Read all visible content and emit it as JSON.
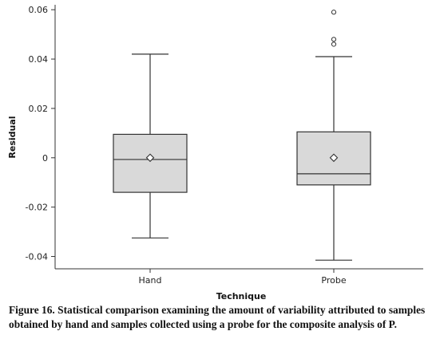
{
  "chart_data": {
    "type": "box",
    "xlabel": "Technique",
    "ylabel": "Residual",
    "ylim": [
      -0.045,
      0.062
    ],
    "yticks": [
      {
        "value": -0.04,
        "label": "-0.04"
      },
      {
        "value": -0.02,
        "label": "-0.02"
      },
      {
        "value": 0,
        "label": "0"
      },
      {
        "value": 0.02,
        "label": "0.02"
      },
      {
        "value": 0.04,
        "label": "0.04"
      },
      {
        "value": 0.06,
        "label": "0.06"
      }
    ],
    "categories": [
      "Hand",
      "Probe"
    ],
    "boxes": [
      {
        "category": "Hand",
        "whisker_low": -0.0325,
        "q1": -0.014,
        "median": -0.0007,
        "q3": 0.0095,
        "whisker_high": 0.042,
        "mean": 0.0,
        "outliers": []
      },
      {
        "category": "Probe",
        "whisker_low": -0.0415,
        "q1": -0.011,
        "median": -0.0065,
        "q3": 0.0105,
        "whisker_high": 0.041,
        "mean": 0.0,
        "outliers": [
          0.046,
          0.048,
          0.059
        ]
      }
    ],
    "grid": false,
    "legend": "none"
  },
  "caption": "Figure 16. Statistical comparison examining the amount of variability attributed to samples obtained by hand and samples collected using a probe for the composite analysis of P.",
  "colors": {
    "box_fill": "#d9d9d9",
    "stroke": "#333333",
    "background": "#ffffff"
  }
}
